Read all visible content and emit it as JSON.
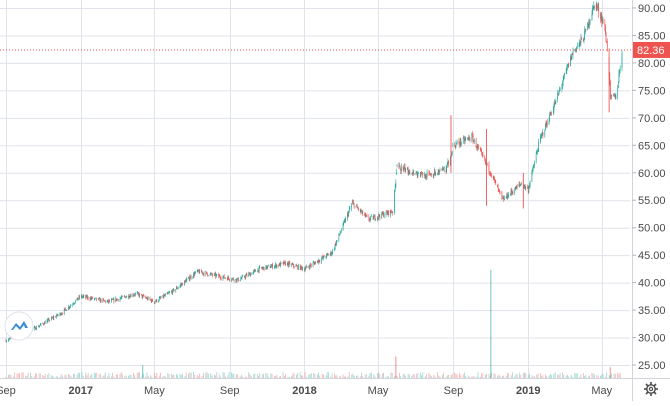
{
  "chart_data": {
    "type": "candlestick",
    "title": "",
    "xlabel": "",
    "ylabel": "",
    "ylim": [
      23,
      92
    ],
    "y_ticks": [
      25,
      30,
      35,
      40,
      45,
      50,
      55,
      60,
      65,
      70,
      75,
      80,
      85,
      90
    ],
    "y_tick_labels": [
      "25.00",
      "30.00",
      "35.00",
      "40.00",
      "45.00",
      "50.00",
      "55.00",
      "60.00",
      "65.00",
      "70.00",
      "75.00",
      "80.00",
      "85.00",
      "90.00"
    ],
    "x_ticks": [
      {
        "date": "2016-09-01",
        "label": "Sep"
      },
      {
        "date": "2017-01-01",
        "label": "2017"
      },
      {
        "date": "2017-05-01",
        "label": "May"
      },
      {
        "date": "2017-09-01",
        "label": "Sep"
      },
      {
        "date": "2018-01-01",
        "label": "2018"
      },
      {
        "date": "2018-05-01",
        "label": "May"
      },
      {
        "date": "2018-09-01",
        "label": "Sep"
      },
      {
        "date": "2019-01-01",
        "label": "2019"
      },
      {
        "date": "2019-05-01",
        "label": "May"
      }
    ],
    "x_range": [
      "2016-09-01",
      "2019-06-03"
    ],
    "last_price": "82.36",
    "last_price_value": 82.36,
    "colors": {
      "up": "#26a69a",
      "down": "#ef5350",
      "last_price": "#ef5350",
      "axis_text": "#4a4a4a",
      "grid": "#e0e3eb"
    },
    "price_path": [
      [
        "2016-09-01",
        29.5
      ],
      [
        "2016-10-15",
        31.5
      ],
      [
        "2016-12-01",
        34.5
      ],
      [
        "2017-01-01",
        37.5
      ],
      [
        "2017-02-15",
        36.5
      ],
      [
        "2017-04-01",
        38.0
      ],
      [
        "2017-05-01",
        36.5
      ],
      [
        "2017-06-01",
        38.5
      ],
      [
        "2017-07-10",
        42.0
      ],
      [
        "2017-08-20",
        41.0
      ],
      [
        "2017-09-15",
        40.5
      ],
      [
        "2017-10-20",
        42.5
      ],
      [
        "2017-12-01",
        43.5
      ],
      [
        "2018-01-01",
        42.5
      ],
      [
        "2018-02-15",
        45.5
      ],
      [
        "2018-03-20",
        54.5
      ],
      [
        "2018-04-15",
        51.5
      ],
      [
        "2018-05-25",
        53.0
      ],
      [
        "2018-06-01",
        61.0
      ],
      [
        "2018-07-15",
        59.5
      ],
      [
        "2018-08-20",
        60.5
      ],
      [
        "2018-09-01",
        65.0
      ],
      [
        "2018-10-01",
        66.5
      ],
      [
        "2018-11-01",
        60.0
      ],
      [
        "2018-11-20",
        55.0
      ],
      [
        "2018-12-20",
        58.0
      ],
      [
        "2019-01-01",
        57.0
      ],
      [
        "2019-01-20",
        66.0
      ],
      [
        "2019-02-15",
        73.0
      ],
      [
        "2019-03-15",
        82.0
      ],
      [
        "2019-04-01",
        84.5
      ],
      [
        "2019-04-20",
        91.0
      ],
      [
        "2019-05-05",
        87.0
      ],
      [
        "2019-05-12",
        81.0
      ],
      [
        "2019-05-15",
        73.5
      ],
      [
        "2019-05-25",
        74.0
      ],
      [
        "2019-06-03",
        82.36
      ]
    ],
    "gaps": [
      "2018-06-01",
      "2018-09-01"
    ],
    "volume_spikes": [
      {
        "date": "2017-04-12",
        "relative": 0.12,
        "direction": "up"
      },
      {
        "date": "2018-05-30",
        "relative": 0.2,
        "direction": "down"
      },
      {
        "date": "2018-11-01",
        "relative": 1.0,
        "direction": "up"
      },
      {
        "date": "2019-05-15",
        "relative": 0.1,
        "direction": "down"
      }
    ]
  }
}
